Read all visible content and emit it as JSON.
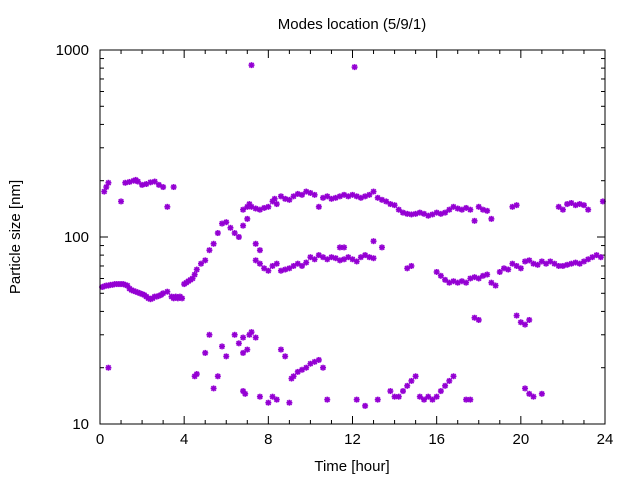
{
  "chart_data": {
    "type": "scatter",
    "title": "Modes location (5/9/1)",
    "xlabel": "Time [hour]",
    "ylabel": "Particle size [nm]",
    "xlim": [
      0,
      24
    ],
    "ylim": [
      10,
      1000
    ],
    "yscale": "log",
    "grid": false,
    "legend": "none",
    "marker": "asterisk",
    "color": "#9400d3",
    "xticks": [
      0,
      4,
      8,
      12,
      16,
      20,
      24
    ],
    "xtick_labels": [
      "0",
      "4",
      "8",
      "12",
      "16",
      "20",
      "24"
    ],
    "yticks": [
      10,
      100,
      1000
    ],
    "ytick_labels": [
      "10",
      "100",
      "1000"
    ],
    "series": [
      {
        "points": [
          [
            0.1,
            54
          ],
          [
            0.2,
            54.5
          ],
          [
            0.3,
            55
          ],
          [
            0.4,
            55
          ],
          [
            0.5,
            55.5
          ],
          [
            0.6,
            55.5
          ],
          [
            0.7,
            56
          ],
          [
            0.8,
            56
          ],
          [
            0.9,
            56
          ],
          [
            1.0,
            56
          ],
          [
            1.1,
            56
          ],
          [
            1.2,
            55.5
          ],
          [
            1.3,
            55
          ],
          [
            1.4,
            53
          ],
          [
            1.5,
            52
          ],
          [
            1.6,
            51.5
          ],
          [
            1.7,
            51
          ],
          [
            1.8,
            50.5
          ],
          [
            1.9,
            50
          ],
          [
            2.0,
            49.5
          ],
          [
            2.1,
            49
          ],
          [
            2.2,
            48
          ],
          [
            2.3,
            47
          ],
          [
            2.4,
            46.5
          ],
          [
            2.5,
            47
          ],
          [
            2.6,
            48
          ],
          [
            2.7,
            48
          ],
          [
            2.8,
            48.5
          ],
          [
            2.9,
            49
          ],
          [
            3.0,
            50
          ],
          [
            3.2,
            51
          ],
          [
            3.4,
            48
          ],
          [
            3.5,
            47
          ],
          [
            3.6,
            48
          ],
          [
            3.7,
            47
          ],
          [
            3.8,
            48
          ],
          [
            3.9,
            47
          ],
          [
            4.0,
            56
          ],
          [
            4.1,
            57
          ],
          [
            4.2,
            58
          ],
          [
            4.3,
            59
          ],
          [
            4.4,
            60
          ],
          [
            4.5,
            63
          ],
          [
            4.6,
            67
          ],
          [
            4.8,
            72
          ],
          [
            5.0,
            75
          ],
          [
            5.2,
            85
          ],
          [
            5.4,
            92
          ],
          [
            5.6,
            105
          ],
          [
            5.8,
            118
          ],
          [
            6.0,
            120
          ],
          [
            6.2,
            112
          ],
          [
            6.4,
            105
          ],
          [
            6.6,
            100
          ],
          [
            6.8,
            115
          ],
          [
            7.0,
            125
          ],
          [
            0.2,
            175
          ],
          [
            0.3,
            185
          ],
          [
            0.4,
            195
          ],
          [
            1.0,
            155
          ],
          [
            1.2,
            195
          ],
          [
            1.4,
            197
          ],
          [
            1.6,
            200
          ],
          [
            1.7,
            202
          ],
          [
            1.8,
            198
          ],
          [
            2.0,
            190
          ],
          [
            2.2,
            192
          ],
          [
            2.4,
            196
          ],
          [
            2.6,
            198
          ],
          [
            2.8,
            190
          ],
          [
            3.0,
            185
          ],
          [
            3.2,
            145
          ],
          [
            3.5,
            185
          ],
          [
            6.8,
            140
          ],
          [
            7.0,
            145
          ],
          [
            7.1,
            150
          ],
          [
            7.2,
            145
          ],
          [
            7.4,
            142
          ],
          [
            7.6,
            140
          ],
          [
            7.8,
            143
          ],
          [
            8.0,
            145
          ],
          [
            8.2,
            155
          ],
          [
            8.3,
            160
          ],
          [
            8.4,
            150
          ],
          [
            8.6,
            165
          ],
          [
            8.8,
            160
          ],
          [
            9.0,
            158
          ],
          [
            9.2,
            165
          ],
          [
            9.4,
            170
          ],
          [
            9.6,
            168
          ],
          [
            9.8,
            175
          ],
          [
            10.0,
            172
          ],
          [
            10.2,
            168
          ],
          [
            10.4,
            145
          ],
          [
            10.6,
            162
          ],
          [
            10.8,
            165
          ],
          [
            11.0,
            160
          ],
          [
            11.2,
            162
          ],
          [
            11.4,
            165
          ],
          [
            11.6,
            168
          ],
          [
            11.8,
            165
          ],
          [
            12.0,
            168
          ],
          [
            12.2,
            165
          ],
          [
            12.4,
            162
          ],
          [
            12.6,
            165
          ],
          [
            12.8,
            168
          ],
          [
            13.0,
            175
          ],
          [
            13.2,
            162
          ],
          [
            13.4,
            158
          ],
          [
            13.6,
            155
          ],
          [
            13.8,
            150
          ],
          [
            14.0,
            148
          ],
          [
            14.2,
            140
          ],
          [
            14.4,
            135
          ],
          [
            14.6,
            133
          ],
          [
            14.8,
            132
          ],
          [
            15.0,
            133
          ],
          [
            15.2,
            135
          ],
          [
            15.4,
            133
          ],
          [
            15.6,
            130
          ],
          [
            15.8,
            132
          ],
          [
            16.0,
            135
          ],
          [
            16.2,
            133
          ],
          [
            16.4,
            135
          ],
          [
            16.6,
            140
          ],
          [
            16.8,
            145
          ],
          [
            17.0,
            142
          ],
          [
            17.2,
            140
          ],
          [
            17.4,
            143
          ],
          [
            17.6,
            140
          ],
          [
            17.8,
            122
          ],
          [
            18.0,
            145
          ],
          [
            18.2,
            140
          ],
          [
            18.4,
            138
          ],
          [
            18.6,
            125
          ],
          [
            19.6,
            145
          ],
          [
            19.8,
            148
          ],
          [
            21.8,
            145
          ],
          [
            22.0,
            140
          ],
          [
            22.2,
            150
          ],
          [
            22.4,
            152
          ],
          [
            22.6,
            148
          ],
          [
            22.8,
            150
          ],
          [
            23.0,
            148
          ],
          [
            23.2,
            140
          ],
          [
            23.9,
            155
          ],
          [
            7.4,
            92
          ],
          [
            7.6,
            85
          ],
          [
            7.4,
            75
          ],
          [
            7.6,
            72
          ],
          [
            7.8,
            68
          ],
          [
            8.0,
            66
          ],
          [
            8.2,
            70
          ],
          [
            8.4,
            72
          ],
          [
            8.6,
            66
          ],
          [
            8.8,
            67
          ],
          [
            9.0,
            68
          ],
          [
            9.2,
            70
          ],
          [
            9.4,
            72
          ],
          [
            9.6,
            70
          ],
          [
            9.8,
            73
          ],
          [
            10.0,
            78
          ],
          [
            10.2,
            76
          ],
          [
            10.4,
            80
          ],
          [
            10.6,
            78
          ],
          [
            10.8,
            76
          ],
          [
            11.0,
            78
          ],
          [
            11.2,
            77
          ],
          [
            11.4,
            75
          ],
          [
            11.6,
            76
          ],
          [
            11.8,
            78
          ],
          [
            12.0,
            76
          ],
          [
            12.2,
            74
          ],
          [
            12.4,
            78
          ],
          [
            12.6,
            80
          ],
          [
            12.8,
            78
          ],
          [
            13.0,
            77
          ],
          [
            11.4,
            88
          ],
          [
            11.6,
            88
          ],
          [
            13.0,
            95
          ],
          [
            13.4,
            88
          ],
          [
            14.6,
            68
          ],
          [
            14.8,
            70
          ],
          [
            16.0,
            65
          ],
          [
            16.2,
            62
          ],
          [
            16.4,
            59
          ],
          [
            16.6,
            57
          ],
          [
            16.8,
            58
          ],
          [
            17.0,
            57
          ],
          [
            17.2,
            58
          ],
          [
            17.4,
            57
          ],
          [
            17.6,
            60
          ],
          [
            17.8,
            61
          ],
          [
            18.0,
            60
          ],
          [
            18.2,
            62
          ],
          [
            18.4,
            63
          ],
          [
            18.6,
            57
          ],
          [
            18.8,
            55
          ],
          [
            19.0,
            65
          ],
          [
            19.2,
            68
          ],
          [
            19.4,
            67
          ],
          [
            19.6,
            72
          ],
          [
            19.8,
            70
          ],
          [
            20.0,
            68
          ],
          [
            20.2,
            74
          ],
          [
            20.4,
            75
          ],
          [
            20.6,
            72
          ],
          [
            20.8,
            71
          ],
          [
            21.0,
            74
          ],
          [
            21.2,
            72
          ],
          [
            21.4,
            74
          ],
          [
            21.6,
            72
          ],
          [
            21.8,
            70
          ],
          [
            22.0,
            70
          ],
          [
            22.2,
            71
          ],
          [
            22.4,
            72
          ],
          [
            22.6,
            73
          ],
          [
            22.8,
            72
          ],
          [
            23.0,
            74
          ],
          [
            23.2,
            76
          ],
          [
            23.4,
            78
          ],
          [
            23.6,
            80
          ],
          [
            23.8,
            78
          ],
          [
            0.4,
            20
          ],
          [
            4.5,
            18
          ],
          [
            4.6,
            18.5
          ],
          [
            5.0,
            24
          ],
          [
            5.2,
            30
          ],
          [
            5.4,
            15.5
          ],
          [
            5.6,
            18
          ],
          [
            5.8,
            26
          ],
          [
            6.0,
            23
          ],
          [
            6.4,
            30
          ],
          [
            6.6,
            27
          ],
          [
            6.8,
            29
          ],
          [
            6.8,
            24
          ],
          [
            6.8,
            15
          ],
          [
            6.9,
            14.5
          ],
          [
            7.0,
            25
          ],
          [
            7.1,
            30
          ],
          [
            7.2,
            31
          ],
          [
            7.4,
            29
          ],
          [
            7.6,
            14
          ],
          [
            8.0,
            13
          ],
          [
            8.2,
            14
          ],
          [
            8.4,
            13.5
          ],
          [
            8.6,
            25
          ],
          [
            8.8,
            23
          ],
          [
            9.0,
            13
          ],
          [
            9.1,
            17.5
          ],
          [
            9.2,
            18
          ],
          [
            9.4,
            19
          ],
          [
            9.6,
            19.5
          ],
          [
            9.8,
            20
          ],
          [
            10.0,
            21
          ],
          [
            10.2,
            21.5
          ],
          [
            10.4,
            22
          ],
          [
            10.6,
            20
          ],
          [
            10.8,
            13.5
          ],
          [
            12.2,
            13.5
          ],
          [
            12.6,
            12.5
          ],
          [
            13.2,
            13.5
          ],
          [
            13.8,
            15
          ],
          [
            14.0,
            14
          ],
          [
            14.2,
            14
          ],
          [
            14.4,
            15
          ],
          [
            14.6,
            16
          ],
          [
            14.8,
            17
          ],
          [
            15.0,
            18
          ],
          [
            15.2,
            14
          ],
          [
            15.4,
            13.5
          ],
          [
            15.6,
            14
          ],
          [
            15.8,
            13.5
          ],
          [
            16.0,
            14
          ],
          [
            16.2,
            15
          ],
          [
            16.4,
            16
          ],
          [
            16.6,
            17
          ],
          [
            16.8,
            18
          ],
          [
            17.4,
            13.5
          ],
          [
            17.6,
            13.5
          ],
          [
            17.8,
            37
          ],
          [
            18.0,
            36
          ],
          [
            19.8,
            38
          ],
          [
            20.0,
            35
          ],
          [
            20.2,
            34
          ],
          [
            20.4,
            36
          ],
          [
            20.2,
            15.5
          ],
          [
            20.4,
            14.5
          ],
          [
            20.6,
            14
          ],
          [
            21.0,
            14.5
          ],
          [
            7.2,
            830
          ],
          [
            12.1,
            810
          ]
        ]
      }
    ]
  }
}
